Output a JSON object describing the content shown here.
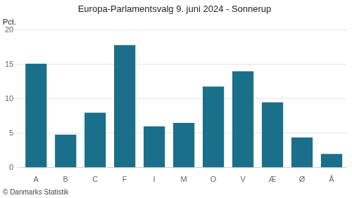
{
  "chart_data": {
    "type": "bar",
    "title": "Europa-Parlamentsvalg 9. juni 2024 - Sonnerup",
    "categories": [
      "A",
      "B",
      "C",
      "F",
      "I",
      "M",
      "O",
      "V",
      "Æ",
      "Ø",
      "Å"
    ],
    "values": [
      15.1,
      4.8,
      8.0,
      17.8,
      6.0,
      6.5,
      11.8,
      14.0,
      9.5,
      4.4,
      2.0
    ],
    "color": "#1a6f8a",
    "ylabel": "Pct.",
    "ylim": [
      0,
      20
    ],
    "yticks": [
      0,
      5,
      10,
      15,
      20
    ],
    "grid": true,
    "annotations": [
      "© Danmarks Statistik"
    ]
  }
}
